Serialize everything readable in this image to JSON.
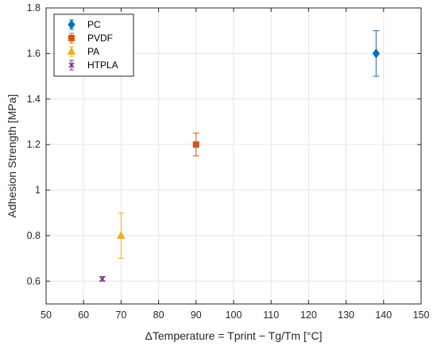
{
  "chart_data": {
    "type": "scatter",
    "title": "",
    "xlabel": "ΔTemperature = Tprint − Tg/Tm [°C]",
    "ylabel": "Adhesion Strength [MPa]",
    "xlim": [
      50,
      150
    ],
    "ylim": [
      0.5,
      1.8
    ],
    "x_ticks": [
      50,
      60,
      70,
      80,
      90,
      100,
      110,
      120,
      130,
      140,
      150
    ],
    "x_tick_labels": [
      "50",
      "60",
      "70",
      "80",
      "90",
      "100",
      "110",
      "120",
      "130",
      "140",
      "150"
    ],
    "y_ticks": [
      0.6,
      0.8,
      1.0,
      1.2,
      1.4,
      1.6,
      1.8
    ],
    "y_tick_labels": [
      "0.6",
      "0.8",
      "1",
      "1.2",
      "1.4",
      "1.6",
      "1.8"
    ],
    "grid": true,
    "legend_position": "top-left",
    "series": [
      {
        "name": "PC",
        "marker": "diamond",
        "color": "#0072BD",
        "x": [
          138
        ],
        "y": [
          1.6
        ],
        "y_low": [
          1.5
        ],
        "y_high": [
          1.7
        ]
      },
      {
        "name": "PVDF",
        "marker": "square",
        "color": "#D95319",
        "x": [
          90
        ],
        "y": [
          1.2
        ],
        "y_low": [
          1.15
        ],
        "y_high": [
          1.25
        ]
      },
      {
        "name": "PA",
        "marker": "triangle",
        "color": "#EDB120",
        "x": [
          70
        ],
        "y": [
          0.8
        ],
        "y_low": [
          0.7
        ],
        "y_high": [
          0.9
        ]
      },
      {
        "name": "HTPLA",
        "marker": "x",
        "color": "#7E2F8E",
        "x": [
          65
        ],
        "y": [
          0.61
        ],
        "y_low": [
          0.6
        ],
        "y_high": [
          0.62
        ]
      }
    ]
  }
}
